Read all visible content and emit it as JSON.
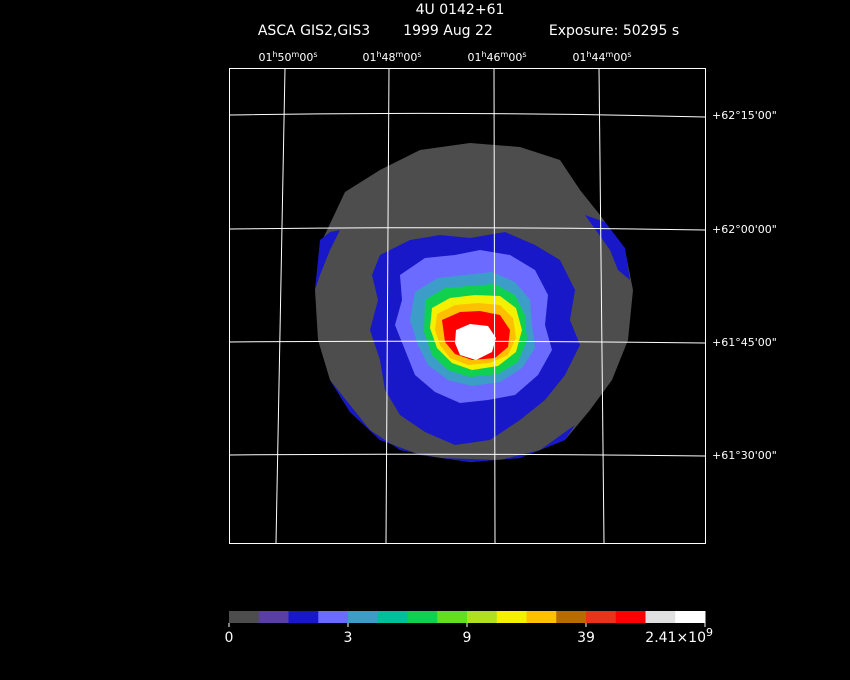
{
  "header": {
    "title": "4U 0142+61",
    "instrument": "ASCA GIS2,GIS3",
    "date": "1999 Aug 22",
    "exposure": "Exposure: 50295 s"
  },
  "ra_labels": [
    [
      "01",
      "h",
      "50",
      "m",
      "00",
      "s"
    ],
    [
      "01",
      "h",
      "48",
      "m",
      "00",
      "s"
    ],
    [
      "01",
      "h",
      "46",
      "m",
      "00",
      "s"
    ],
    [
      "01",
      "h",
      "44",
      "m",
      "00",
      "s"
    ]
  ],
  "dec_labels": [
    "+62°15'00\"",
    "+62°00'00\"",
    "+61°45'00\"",
    "+61°30'00\""
  ],
  "colorbar": {
    "colors": [
      "#4d4d4d",
      "#5a3ea6",
      "#1818c8",
      "#6b6bff",
      "#3c9ec8",
      "#00c09c",
      "#10d050",
      "#60e020",
      "#b0e020",
      "#f4f000",
      "#ffc000",
      "#b86c00",
      "#e83418",
      "#ff0000",
      "#e0e0e0",
      "#ffffff"
    ],
    "labels": [
      "0",
      "3",
      "9",
      "39",
      {
        "base": "2.41×10",
        "exp": "9"
      }
    ]
  }
}
